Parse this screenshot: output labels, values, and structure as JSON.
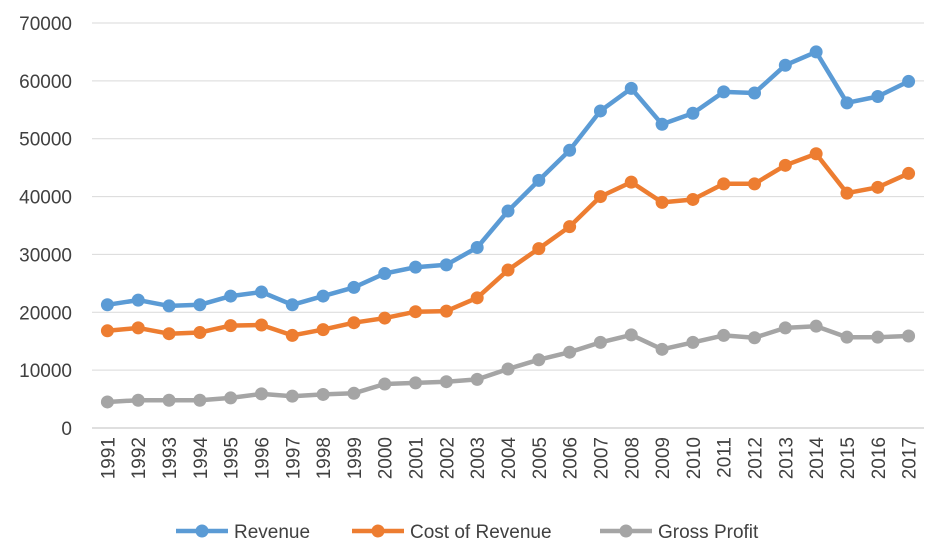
{
  "chart_data": {
    "type": "line",
    "title": "",
    "xlabel": "",
    "ylabel": "",
    "ylim": [
      0,
      70000
    ],
    "yticks": [
      0,
      10000,
      20000,
      30000,
      40000,
      50000,
      60000,
      70000
    ],
    "grid": true,
    "legend_position": "bottom",
    "x": [
      "1991",
      "1992",
      "1993",
      "1994",
      "1995",
      "1996",
      "1997",
      "1998",
      "1999",
      "2000",
      "2001",
      "2002",
      "2003",
      "2004",
      "2005",
      "2006",
      "2007",
      "2008",
      "2009",
      "2010",
      "2011",
      "2012",
      "2013",
      "2014",
      "2015",
      "2016",
      "2017"
    ],
    "series": [
      {
        "name": "Revenue",
        "color": "#5b9bd5",
        "values": [
          21300,
          22100,
          21100,
          21300,
          22800,
          23500,
          21300,
          22800,
          24300,
          26700,
          27800,
          28200,
          31200,
          37500,
          42800,
          48000,
          54800,
          58700,
          52500,
          54400,
          58100,
          57900,
          62700,
          65000,
          56200,
          57300,
          59900
        ]
      },
      {
        "name": "Cost of Revenue",
        "color": "#ed7d31",
        "values": [
          16800,
          17300,
          16300,
          16500,
          17700,
          17800,
          16000,
          17000,
          18200,
          19000,
          20100,
          20200,
          22500,
          27300,
          31000,
          34800,
          40000,
          42500,
          39000,
          39500,
          42200,
          42200,
          45400,
          47400,
          40600,
          41600,
          44000
        ]
      },
      {
        "name": "Gross Profit",
        "color": "#a5a5a5",
        "values": [
          4500,
          4800,
          4800,
          4800,
          5200,
          5900,
          5500,
          5800,
          6000,
          7600,
          7800,
          8000,
          8400,
          10200,
          11800,
          13100,
          14800,
          16100,
          13600,
          14800,
          16000,
          15600,
          17300,
          17600,
          15700,
          15700,
          15900
        ]
      }
    ]
  }
}
